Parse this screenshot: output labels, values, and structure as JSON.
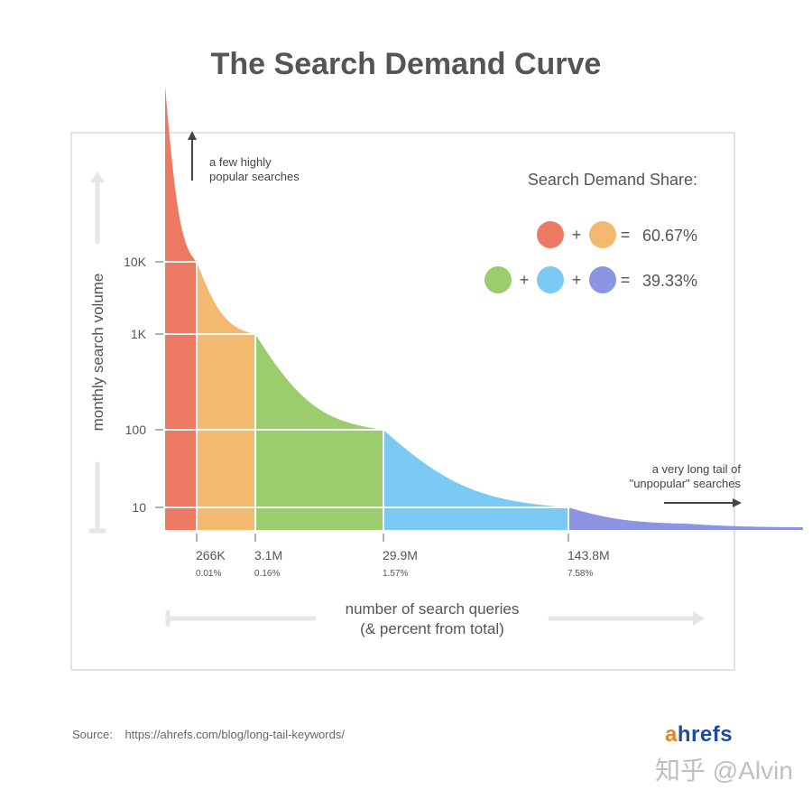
{
  "title": "The Search Demand Curve",
  "chart_data": {
    "type": "area",
    "title": "The Search Demand Curve",
    "xlabel": [
      "number of search queries",
      "(& percent from total)"
    ],
    "ylabel": "monthly search volume",
    "y_scale": "log",
    "y_ticks": [
      "10K",
      "1K",
      "100",
      "10"
    ],
    "x_ticks": [
      {
        "value": "266K",
        "percent": "0.01%"
      },
      {
        "value": "3.1M",
        "percent": "0.16%"
      },
      {
        "value": "29.9M",
        "percent": "1.57%"
      },
      {
        "value": "143.8M",
        "percent": "7.58%"
      }
    ],
    "segments": [
      {
        "range": "10K+",
        "color": "#ec7a63"
      },
      {
        "range": "1K-10K",
        "color": "#f2b96f"
      },
      {
        "range": "100-1K",
        "color": "#9bcd6e"
      },
      {
        "range": "10-100",
        "color": "#7bcaf4"
      },
      {
        "range": "<10",
        "color": "#8b95e2"
      }
    ],
    "annotations": {
      "top": [
        "a few highly",
        "popular searches"
      ],
      "right": [
        "a very long tail of",
        "\"unpopular\" searches"
      ]
    },
    "share": {
      "heading": "Search Demand Share:",
      "rows": [
        {
          "colors": [
            "#ec7a63",
            "#f2b96f"
          ],
          "value": "60.67%"
        },
        {
          "colors": [
            "#9bcd6e",
            "#7bcaf4",
            "#8b95e2"
          ],
          "value": "39.33%"
        }
      ]
    },
    "grid": false
  },
  "source": {
    "label": "Source:",
    "url": "https://ahrefs.com/blog/long-tail-keywords/"
  },
  "logo": {
    "first": "a",
    "rest": "hrefs"
  },
  "watermark": "知乎 @Alvin"
}
